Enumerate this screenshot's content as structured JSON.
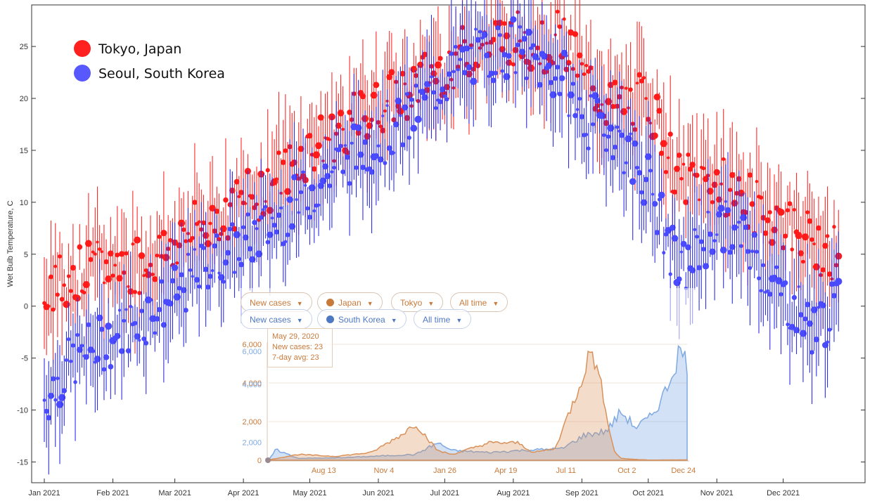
{
  "chart_data": [
    {
      "type": "scatter",
      "ylabel": "Wet Bulb Temperature, C",
      "ylim": [
        -17,
        29
      ],
      "yticks": [
        25,
        20,
        15,
        10,
        5,
        0,
        -5,
        -10,
        -15
      ],
      "months": [
        "Jan 2021",
        "Feb 2021",
        "Mar 2021",
        "Apr 2021",
        "May 2021",
        "Jun 2021",
        "Jul 2021",
        "Aug 2021",
        "Sep 2021",
        "Oct 2021",
        "Nov 2021",
        "Dec 2021"
      ],
      "legend_position": "top-left",
      "error_bars": "vertical",
      "series": [
        {
          "name": "Tokyo, Japan",
          "color": "#ff0000",
          "day_of_year": [
            1,
            15,
            32,
            46,
            60,
            74,
            91,
            105,
            121,
            135,
            152,
            166,
            182,
            196,
            213,
            227,
            236,
            244,
            258,
            274,
            288,
            305,
            319,
            335,
            349,
            360
          ],
          "values": [
            2,
            3,
            4,
            4,
            6,
            8,
            10,
            12,
            15,
            17,
            19,
            21,
            23,
            25,
            26,
            25,
            26,
            22,
            19,
            20,
            12,
            12,
            10,
            8,
            6,
            5
          ]
        },
        {
          "name": "Seoul, South Korea",
          "color": "#3b3bff",
          "day_of_year": [
            1,
            15,
            32,
            46,
            60,
            74,
            91,
            105,
            121,
            135,
            152,
            166,
            182,
            196,
            213,
            227,
            236,
            244,
            258,
            274,
            288,
            305,
            319,
            335,
            349,
            360
          ],
          "values": [
            -9,
            -5,
            -3,
            -1,
            1,
            4,
            6,
            8,
            11,
            14,
            16,
            18,
            22,
            24,
            25,
            23,
            22,
            18,
            17,
            12,
            3,
            8,
            6,
            1,
            -2,
            0
          ]
        }
      ]
    },
    {
      "type": "area",
      "filters": {
        "row1": [
          "New cases",
          "Japan",
          "Tokyo",
          "All time"
        ],
        "row2": [
          "New cases",
          "South Korea",
          "All time"
        ]
      },
      "yticks_japan": [
        "6,000",
        "4,000",
        "2,000",
        "0"
      ],
      "yticks_korea": [
        "6,000",
        "4,000",
        "2,000"
      ],
      "x_ticks": [
        "Aug 13",
        "Nov 4",
        "Jan 26",
        "Apr 19",
        "Jul 11",
        "Oct 2",
        "Dec 24"
      ],
      "tooltip": {
        "date": "May 29, 2020",
        "new_cases": "New cases: 23",
        "avg": "7-day avg: 23"
      },
      "series": [
        {
          "name": "Japan",
          "color": "#d9915a",
          "x_days": [
            0,
            40,
            90,
            140,
            180,
            200,
            230,
            250,
            300,
            340,
            360,
            390,
            420,
            440,
            455,
            470,
            480,
            500,
            520,
            570
          ],
          "values": [
            20,
            300,
            200,
            400,
            1300,
            1900,
            500,
            300,
            900,
            900,
            400,
            600,
            3500,
            5800,
            3500,
            500,
            100,
            40,
            10,
            20
          ]
        },
        {
          "name": "South Korea",
          "color": "#7ea9e1",
          "x_days": [
            0,
            10,
            40,
            90,
            140,
            200,
            230,
            250,
            300,
            340,
            400,
            430,
            460,
            480,
            500,
            520,
            540,
            560,
            570
          ],
          "values": [
            10,
            550,
            100,
            120,
            200,
            300,
            900,
            500,
            400,
            500,
            600,
            1300,
            1500,
            2500,
            1700,
            2200,
            3500,
            5700,
            5000
          ]
        }
      ]
    }
  ]
}
